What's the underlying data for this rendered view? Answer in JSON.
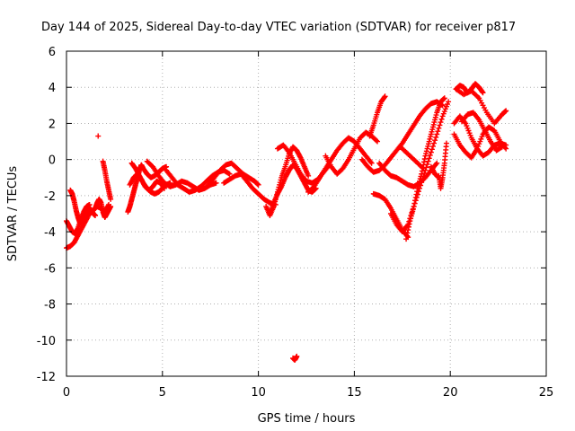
{
  "chart_data": {
    "type": "scatter",
    "title": "Day 144 of 2025, Sidereal Day-to-day VTEC variation (SDTVAR) for receiver p817",
    "xlabel": "GPS time / hours",
    "ylabel": "SDTVAR / TECUs",
    "xlim": [
      0,
      25
    ],
    "ylim": [
      -12,
      6
    ],
    "xticks": [
      0,
      5,
      10,
      15,
      20,
      25
    ],
    "yticks": [
      -12,
      -10,
      -8,
      -6,
      -4,
      -2,
      0,
      2,
      4,
      6
    ],
    "xtick_labels": [
      "0",
      "5",
      "10",
      "15",
      "20",
      "25"
    ],
    "ytick_labels": [
      "-12",
      "-10",
      "-8",
      "-6",
      "-4",
      "-2",
      "0",
      "2",
      "4",
      "6"
    ],
    "grid": true,
    "marker": "+",
    "color": "#ff0000",
    "series": [
      {
        "name": "s1",
        "x": [
          0.0,
          0.2,
          0.4,
          0.6,
          0.8,
          1.0,
          1.2,
          1.4,
          1.6,
          1.8,
          2.0,
          2.2
        ],
        "y": [
          -4.9,
          -4.8,
          -4.6,
          -4.2,
          -3.8,
          -3.4,
          -3.0,
          -2.8,
          -2.6,
          -2.7,
          -2.9,
          -2.5
        ]
      },
      {
        "name": "s2",
        "x": [
          0.0,
          0.15,
          0.3,
          0.45,
          0.6,
          0.75,
          0.9,
          1.05,
          1.2
        ],
        "y": [
          -3.4,
          -3.7,
          -4.0,
          -4.1,
          -3.8,
          -3.3,
          -2.9,
          -2.6,
          -2.5
        ]
      },
      {
        "name": "s3",
        "x": [
          0.2,
          0.3,
          0.4,
          0.5,
          0.6,
          0.7,
          0.8,
          0.9,
          1.0,
          1.1,
          1.2,
          1.3,
          1.4,
          1.5
        ],
        "y": [
          -1.7,
          -1.9,
          -2.3,
          -2.8,
          -3.2,
          -3.5,
          -3.6,
          -3.4,
          -3.1,
          -2.9,
          -2.7,
          -2.8,
          -3.0,
          -3.1
        ]
      },
      {
        "name": "s4",
        "x": [
          1.5,
          1.6,
          1.7,
          1.8,
          1.9,
          2.0,
          2.1,
          2.2,
          2.3
        ],
        "y": [
          -2.7,
          -2.4,
          -2.2,
          -2.4,
          -2.9,
          -3.2,
          -3.0,
          -2.8,
          -2.6
        ]
      },
      {
        "name": "s5",
        "x": [
          1.9,
          2.0,
          2.1,
          2.2,
          2.3
        ],
        "y": [
          -0.1,
          -0.6,
          -1.2,
          -1.7,
          -2.2
        ]
      },
      {
        "name": "s6",
        "x": [
          1.65
        ],
        "y": [
          1.3
        ]
      },
      {
        "name": "s7",
        "x": [
          3.2,
          3.3,
          3.4,
          3.5,
          3.6,
          3.7,
          3.8,
          3.9,
          4.0,
          4.2,
          4.4,
          4.6,
          4.8,
          5.0,
          5.2
        ],
        "y": [
          -2.9,
          -2.6,
          -2.2,
          -1.8,
          -1.4,
          -1.0,
          -0.6,
          -0.3,
          -0.5,
          -0.8,
          -1.0,
          -0.9,
          -0.7,
          -0.5,
          -0.4
        ]
      },
      {
        "name": "s8",
        "x": [
          3.3,
          3.5,
          3.7,
          3.9,
          4.1,
          4.3,
          4.5,
          4.7,
          4.9,
          5.1
        ],
        "y": [
          -1.4,
          -1.0,
          -0.8,
          -1.1,
          -1.5,
          -1.7,
          -1.5,
          -1.2,
          -1.3,
          -1.6
        ]
      },
      {
        "name": "s9",
        "x": [
          3.4,
          3.6,
          3.8,
          4.0,
          4.2,
          4.4,
          4.6,
          4.8,
          5.0,
          5.2,
          5.4
        ],
        "y": [
          -0.2,
          -0.5,
          -0.9,
          -1.3,
          -1.6,
          -1.8,
          -1.9,
          -1.8,
          -1.6,
          -1.4,
          -1.3
        ]
      },
      {
        "name": "s10",
        "x": [
          4.2,
          4.5,
          4.8,
          5.1,
          5.4,
          5.7,
          6.0,
          6.3,
          6.6,
          6.9,
          7.2,
          7.5,
          7.8
        ],
        "y": [
          -0.1,
          -0.4,
          -0.9,
          -1.3,
          -1.5,
          -1.4,
          -1.2,
          -1.3,
          -1.5,
          -1.7,
          -1.6,
          -1.4,
          -1.3
        ]
      },
      {
        "name": "s11",
        "x": [
          5.2,
          5.5,
          5.8,
          6.1,
          6.4,
          6.7,
          7.0,
          7.3,
          7.6,
          7.9,
          8.2,
          8.5
        ],
        "y": [
          -0.6,
          -1.0,
          -1.4,
          -1.6,
          -1.8,
          -1.7,
          -1.5,
          -1.2,
          -0.9,
          -0.7,
          -0.6,
          -0.8
        ]
      },
      {
        "name": "s12",
        "x": [
          7.4,
          7.7,
          8.0,
          8.3,
          8.6,
          8.9,
          9.2,
          9.5,
          9.8,
          10.0
        ],
        "y": [
          -1.4,
          -1.0,
          -0.6,
          -0.3,
          -0.2,
          -0.5,
          -0.8,
          -1.0,
          -1.2,
          -1.4
        ]
      },
      {
        "name": "s13",
        "x": [
          8.2,
          8.5,
          8.8,
          9.1,
          9.4,
          9.7,
          10.0,
          10.3,
          10.6,
          10.9
        ],
        "y": [
          -1.3,
          -1.1,
          -0.9,
          -0.8,
          -1.2,
          -1.6,
          -1.9,
          -2.2,
          -2.4,
          -2.5
        ]
      },
      {
        "name": "s14",
        "x": [
          10.4,
          10.6,
          10.8,
          11.0,
          11.2,
          11.4,
          11.6,
          11.8,
          12.0,
          12.2,
          12.4,
          12.6
        ],
        "y": [
          -2.6,
          -3.1,
          -2.6,
          -1.8,
          -1.0,
          -0.4,
          0.3,
          0.7,
          0.5,
          0.1,
          -0.4,
          -0.9
        ]
      },
      {
        "name": "s15",
        "x": [
          10.6,
          10.8,
          11.0,
          11.2,
          11.4,
          11.6,
          11.8,
          12.0,
          12.2,
          12.4,
          12.6,
          12.8,
          13.0
        ],
        "y": [
          -3.0,
          -2.4,
          -1.9,
          -1.5,
          -1.0,
          -0.6,
          -0.3,
          -0.5,
          -0.9,
          -1.3,
          -1.7,
          -1.8,
          -1.6
        ]
      },
      {
        "name": "s16",
        "x": [
          11.0,
          11.3,
          11.6,
          11.9,
          12.2,
          12.5,
          12.8,
          13.1,
          13.4,
          13.7
        ],
        "y": [
          0.6,
          0.8,
          0.4,
          -0.2,
          -0.8,
          -1.2,
          -1.3,
          -1.1,
          -0.7,
          -0.3
        ]
      },
      {
        "name": "s17",
        "x": [
          12.6,
          12.9,
          13.2,
          13.5,
          13.8,
          14.1,
          14.4,
          14.7,
          15.0,
          15.3,
          15.6,
          15.9
        ],
        "y": [
          -1.8,
          -1.5,
          -1.0,
          -0.5,
          0.0,
          0.5,
          0.9,
          1.2,
          1.0,
          0.6,
          0.2,
          -0.2
        ]
      },
      {
        "name": "s18",
        "x": [
          13.5,
          13.8,
          14.1,
          14.4,
          14.7,
          15.0,
          15.3,
          15.6,
          15.9,
          16.2
        ],
        "y": [
          0.2,
          -0.4,
          -0.8,
          -0.5,
          0.0,
          0.6,
          1.2,
          1.5,
          1.3,
          1.0
        ]
      },
      {
        "name": "s19",
        "x": [
          15.8,
          16.0,
          16.2,
          16.4,
          16.6
        ],
        "y": [
          1.3,
          1.9,
          2.6,
          3.2,
          3.5
        ]
      },
      {
        "name": "s20",
        "x": [
          15.4,
          15.7,
          16.0,
          16.3,
          16.6,
          16.9,
          17.2,
          17.5,
          17.8,
          18.1,
          18.4,
          18.7,
          19.0,
          19.3,
          19.6
        ],
        "y": [
          0.0,
          -0.4,
          -0.7,
          -0.6,
          -0.3,
          0.1,
          0.5,
          0.9,
          1.4,
          1.9,
          2.4,
          2.8,
          3.1,
          3.2,
          3.0
        ]
      },
      {
        "name": "s21",
        "x": [
          16.3,
          16.6,
          16.9,
          17.2,
          17.5,
          17.8,
          18.1,
          18.4,
          18.7,
          19.0,
          19.3
        ],
        "y": [
          -0.2,
          -0.6,
          -0.9,
          -1.0,
          -1.2,
          -1.4,
          -1.5,
          -1.3,
          -1.0,
          -0.6,
          -0.2
        ]
      },
      {
        "name": "s22",
        "x": [
          16.0,
          16.3,
          16.6,
          16.9,
          17.2,
          17.5,
          17.8
        ],
        "y": [
          -1.9,
          -2.0,
          -2.2,
          -2.7,
          -3.3,
          -3.9,
          -4.3
        ]
      },
      {
        "name": "s23",
        "x": [
          16.9,
          17.2,
          17.5,
          17.8,
          18.1,
          18.4,
          18.7,
          19.0,
          19.3,
          19.6,
          19.9
        ],
        "y": [
          -3.0,
          -3.6,
          -4.0,
          -3.6,
          -2.6,
          -1.6,
          -0.6,
          0.4,
          1.4,
          2.4,
          3.2
        ]
      },
      {
        "name": "s24",
        "x": [
          17.7,
          17.9,
          18.1,
          18.3,
          18.5,
          18.7,
          18.9,
          19.1,
          19.3,
          19.5,
          19.7
        ],
        "y": [
          -4.4,
          -3.4,
          -2.6,
          -1.6,
          -0.8,
          0.2,
          1.0,
          1.8,
          2.6,
          3.2,
          3.4
        ]
      },
      {
        "name": "s25",
        "x": [
          17.4,
          17.8,
          18.2,
          18.6
        ],
        "y": [
          0.7,
          0.3,
          -0.1,
          -0.5
        ]
      },
      {
        "name": "s26",
        "x": [
          19.0,
          19.2,
          19.4
        ],
        "y": [
          -0.4,
          -0.8,
          -1.0
        ]
      },
      {
        "name": "s27",
        "x": [
          19.4,
          19.5,
          19.6,
          19.7,
          19.8
        ],
        "y": [
          -0.9,
          -1.6,
          -1.0,
          -0.2,
          0.9
        ]
      },
      {
        "name": "s28",
        "x": [
          20.3,
          20.7,
          21.1,
          21.5,
          21.9,
          22.3,
          22.7,
          22.9
        ],
        "y": [
          3.9,
          3.6,
          3.8,
          3.4,
          2.6,
          2.0,
          2.5,
          2.7
        ]
      },
      {
        "name": "s29",
        "x": [
          20.3,
          20.5,
          20.7,
          20.9,
          21.1,
          21.3,
          21.5,
          21.7
        ],
        "y": [
          3.9,
          4.1,
          4.0,
          3.7,
          3.9,
          4.2,
          4.0,
          3.7
        ]
      },
      {
        "name": "s30",
        "x": [
          20.2,
          20.5,
          20.8,
          21.1,
          21.4,
          21.7,
          22.0,
          22.3,
          22.6,
          22.9
        ],
        "y": [
          1.4,
          0.8,
          0.4,
          0.1,
          0.6,
          1.4,
          1.8,
          1.6,
          1.0,
          0.6
        ]
      },
      {
        "name": "s31",
        "x": [
          20.2,
          20.5,
          20.8,
          21.1,
          21.4,
          21.7,
          22.0,
          22.3,
          22.6,
          22.9
        ],
        "y": [
          2.0,
          2.4,
          2.0,
          1.2,
          0.6,
          0.2,
          0.4,
          0.8,
          0.9,
          0.8
        ]
      },
      {
        "name": "s32",
        "x": [
          20.6,
          20.9,
          21.2,
          21.5,
          21.8,
          22.1,
          22.4,
          22.7
        ],
        "y": [
          2.1,
          2.5,
          2.6,
          2.2,
          1.6,
          1.0,
          0.5,
          0.7
        ]
      },
      {
        "name": "s33",
        "x": [
          11.8,
          11.9,
          12.0
        ],
        "y": [
          -11.0,
          -11.1,
          -10.9
        ]
      }
    ]
  }
}
